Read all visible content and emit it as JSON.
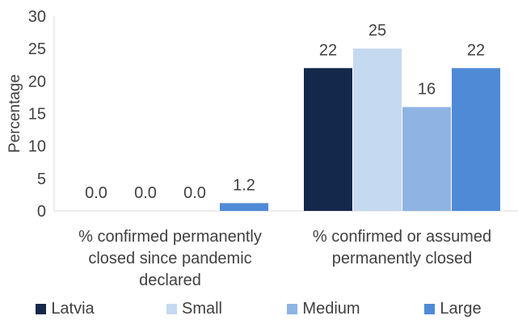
{
  "chart_data": {
    "type": "bar",
    "title": "",
    "xlabel": "",
    "ylabel": "Percentage",
    "ylim": [
      0,
      30
    ],
    "yticks": [
      "0",
      "5",
      "10",
      "15",
      "20",
      "25",
      "30"
    ],
    "categories": [
      "% confirmed permanently closed since pandemic declared",
      "% confirmed or assumed permanently closed"
    ],
    "category_lines": [
      [
        "% confirmed permanently",
        "closed since pandemic",
        "declared"
      ],
      [
        "% confirmed or assumed",
        "permanently closed"
      ]
    ],
    "series": [
      {
        "name": "Latvia",
        "color": "#14284b",
        "values": [
          0.0,
          22
        ],
        "labels": [
          "0.0",
          "22"
        ]
      },
      {
        "name": "Small",
        "color": "#c5d9f1",
        "values": [
          0.0,
          25
        ],
        "labels": [
          "0.0",
          "25"
        ]
      },
      {
        "name": "Medium",
        "color": "#8eb4e3",
        "values": [
          0.0,
          16
        ],
        "labels": [
          "0.0",
          "16"
        ]
      },
      {
        "name": "Large",
        "color": "#4f8ad6",
        "values": [
          1.2,
          22
        ],
        "labels": [
          "1.2",
          "22"
        ]
      }
    ],
    "grid": false,
    "legend_position": "bottom"
  }
}
